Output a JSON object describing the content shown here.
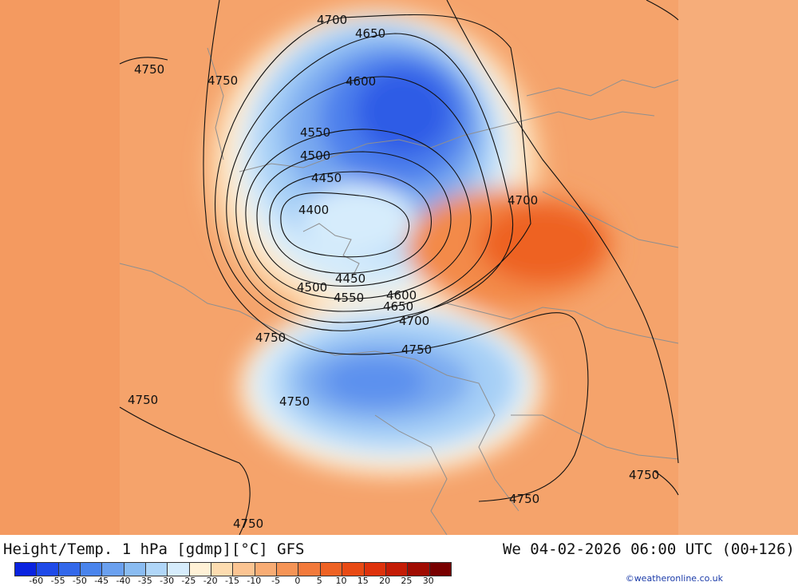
{
  "header": {
    "title": "Height/Temp. 1 hPa [gdmp][°C] GFS",
    "datetime": "We 04-02-2026 06:00 UTC (00+126)"
  },
  "credit": "©weatheronline.co.uk",
  "legend": {
    "colors": [
      "#0a23e0",
      "#1f4ae8",
      "#3368ea",
      "#4a84ec",
      "#6aa0ef",
      "#8abcf2",
      "#b0d6f8",
      "#d6ecfc",
      "#fff1d6",
      "#fddcb0",
      "#fbc492",
      "#f8ac74",
      "#f59456",
      "#f27a3c",
      "#ee6224",
      "#e84a14",
      "#de320c",
      "#c41c06",
      "#a00c02",
      "#780000"
    ],
    "ticks": [
      "-60",
      "-55",
      "-50",
      "-45",
      "-40",
      "-35",
      "-30",
      "-25",
      "-20",
      "-15",
      "-10",
      "-5",
      "0",
      "5",
      "10",
      "15",
      "20",
      "25",
      "30"
    ]
  },
  "contour_labels": [
    {
      "text": "4700"
    },
    {
      "text": "4650"
    },
    {
      "text": "4750"
    },
    {
      "text": "4750"
    },
    {
      "text": "4600"
    },
    {
      "text": "4550"
    },
    {
      "text": "4500"
    },
    {
      "text": "4450"
    },
    {
      "text": "4400"
    },
    {
      "text": "4700"
    },
    {
      "text": "4450"
    },
    {
      "text": "4500"
    },
    {
      "text": "4550"
    },
    {
      "text": "4600"
    },
    {
      "text": "4650"
    },
    {
      "text": "4700"
    },
    {
      "text": "4750"
    },
    {
      "text": "4750"
    },
    {
      "text": "4750"
    },
    {
      "text": "4750"
    },
    {
      "text": "4750"
    },
    {
      "text": "4750"
    },
    {
      "text": "4750"
    }
  ]
}
